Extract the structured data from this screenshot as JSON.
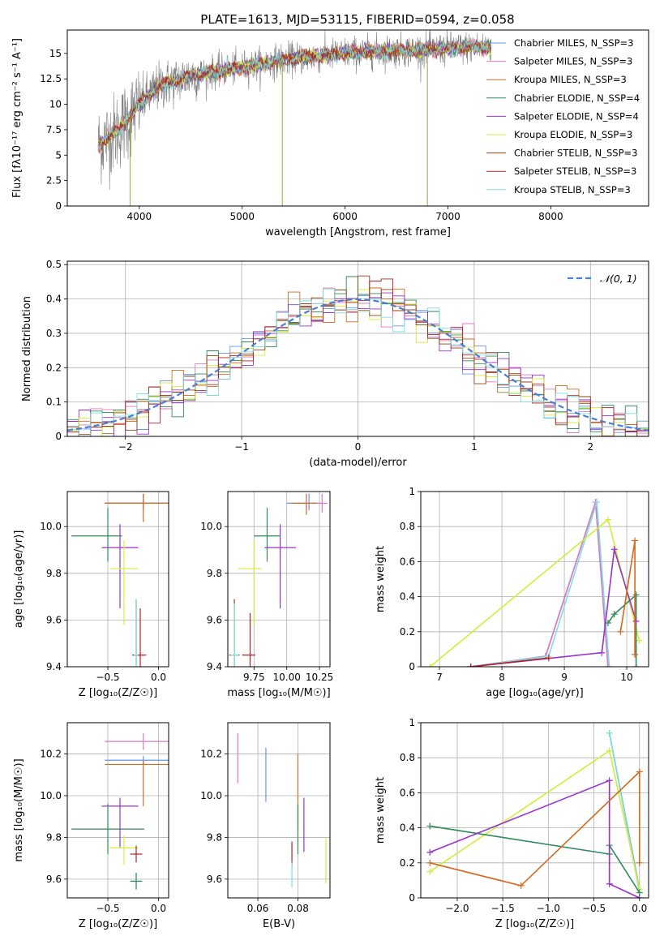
{
  "figure": {
    "title": "PLATE=1613, MJD=53115, FIBERID=0594, z=0.058"
  },
  "chart_data": [
    {
      "id": "spectrum",
      "type": "line",
      "xlabel": "wavelength [Angstrom, rest frame]",
      "ylabel": "Flux [fλ10⁻¹⁷ erg cm⁻² s⁻¹ A⁻¹]",
      "xlim": [
        3300,
        8950
      ],
      "ylim": [
        0,
        17.3
      ],
      "xticks": [
        4000,
        5000,
        6000,
        7000,
        8000
      ],
      "yticks": [
        0.0,
        2.5,
        5.0,
        7.5,
        10.0,
        12.5,
        15.0
      ],
      "grid": false,
      "legend": "upper right",
      "data_color": "#808080",
      "data_range": [
        3600,
        7420
      ],
      "series": [
        {
          "name": "Chabrier MILES, N_SSP=3",
          "color": "#6495ed"
        },
        {
          "name": "Salpeter MILES, N_SSP=3",
          "color": "#e377c2"
        },
        {
          "name": "Kroupa MILES, N_SSP=3",
          "color": "#d2691e"
        },
        {
          "name": "Chabrier ELODIE, N_SSP=4",
          "color": "#2e8b57"
        },
        {
          "name": "Salpeter ELODIE, N_SSP=4",
          "color": "#9932cc"
        },
        {
          "name": "Kroupa ELODIE, N_SSP=3",
          "color": "#d4ec3a"
        },
        {
          "name": "Chabrier STELIB, N_SSP=3",
          "color": "#8b4513"
        },
        {
          "name": "Salpeter STELIB, N_SSP=3",
          "color": "#b22222"
        },
        {
          "name": "Kroupa STELIB, N_SSP=3",
          "color": "#7fdede"
        }
      ],
      "continuum": {
        "x": [
          3600,
          3800,
          4000,
          4200,
          4500,
          4800,
          5100,
          5400,
          5700,
          6000,
          6300,
          6600,
          6900,
          7200,
          7420
        ],
        "y": [
          6.0,
          7.5,
          10.0,
          11.8,
          12.8,
          13.3,
          13.8,
          14.4,
          14.7,
          15.0,
          15.2,
          15.3,
          15.4,
          15.6,
          15.6
        ]
      },
      "spikes": [
        {
          "x": 3910,
          "y": 0
        },
        {
          "x": 5390,
          "y": 0
        },
        {
          "x": 6800,
          "y": 0
        }
      ]
    },
    {
      "id": "residuals",
      "type": "line",
      "xlabel": "(data-model)/error",
      "ylabel": "Normed distribution",
      "xlim": [
        -2.5,
        2.5
      ],
      "ylim": [
        0,
        0.51
      ],
      "xticks": [
        -2,
        -1,
        0,
        1,
        2
      ],
      "yticks": [
        0.0,
        0.1,
        0.2,
        0.3,
        0.4,
        0.5
      ],
      "grid": true,
      "legend": "upper right",
      "reference": {
        "name": "𝒩(0, 1)",
        "color": "#4a7fd4",
        "mu": 0,
        "sigma": 1
      },
      "histogram_bin_width": 0.1,
      "histogram_colors": [
        "#6495ed",
        "#e377c2",
        "#d2691e",
        "#2e8b57",
        "#9932cc",
        "#d4ec3a",
        "#8b4513",
        "#b22222",
        "#7fdede"
      ]
    },
    {
      "id": "z_age",
      "type": "scatter",
      "xlabel": "Z [log₁₀(Z/Z☉)]",
      "ylabel": "age  [log₁₀(age/yr)]",
      "xlim": [
        -0.9,
        0.1
      ],
      "ylim": [
        9.4,
        10.15
      ],
      "xticks": [
        -0.5,
        0.0
      ],
      "xticklabels": [
        "−0.5",
        "0.0"
      ],
      "yticks": [
        9.4,
        9.6,
        9.8,
        10.0
      ],
      "yticklabels": [
        "9.4",
        "9.6",
        "9.8",
        "10.0"
      ],
      "grid": true,
      "points": [
        {
          "x": -0.15,
          "xerr": [
            0.38,
            0.25
          ],
          "y": 10.1,
          "yerr": [
            0.03,
            0.04
          ],
          "color": "#6495ed"
        },
        {
          "x": -0.15,
          "xerr": [
            0.38,
            0.25
          ],
          "y": 10.1,
          "yerr": [
            0.03,
            0.04
          ],
          "color": "#e377c2"
        },
        {
          "x": -0.15,
          "xerr": [
            0.38,
            0.25
          ],
          "y": 10.1,
          "yerr": [
            0.08,
            0.04
          ],
          "color": "#d2691e"
        },
        {
          "x": -0.5,
          "xerr": [
            0.36,
            0.14
          ],
          "y": 9.96,
          "yerr": [
            0.11,
            0.12
          ],
          "color": "#2e8b57"
        },
        {
          "x": -0.38,
          "xerr": [
            0.18,
            0.18
          ],
          "y": 9.91,
          "yerr": [
            0.26,
            0.1
          ],
          "color": "#9932cc"
        },
        {
          "x": -0.34,
          "xerr": [
            0.14,
            0.14
          ],
          "y": 9.82,
          "yerr": [
            0.24,
            0.12
          ],
          "color": "#d4ec3a"
        },
        {
          "x": -0.22,
          "xerr": [
            0.04,
            0.08
          ],
          "y": 9.45,
          "yerr": [
            0.05,
            0.24
          ],
          "color": "#8b4513"
        },
        {
          "x": -0.18,
          "xerr": [
            0.06,
            0.06
          ],
          "y": 9.45,
          "yerr": [
            0.05,
            0.2
          ],
          "color": "#b22222"
        },
        {
          "x": -0.22,
          "xerr": [
            0.02,
            0.02
          ],
          "y": 9.45,
          "yerr": [
            0.05,
            0.24
          ],
          "color": "#7fdede"
        }
      ]
    },
    {
      "id": "mass_age",
      "type": "scatter",
      "xlabel": "mass [log₁₀(M/M☉)]",
      "ylabel": "",
      "xlim": [
        9.55,
        10.33
      ],
      "ylim": [
        9.4,
        10.15
      ],
      "xticks": [
        9.75,
        10.0,
        10.25
      ],
      "xticklabels": [
        "9.75",
        "10.00",
        "10.25"
      ],
      "yticks": [
        9.4,
        9.6,
        9.8,
        10.0
      ],
      "yticklabels": [
        "9.4",
        "9.6",
        "9.8",
        "10.0"
      ],
      "grid": true,
      "points": [
        {
          "x": 10.17,
          "xerr": [
            0.17,
            0.08
          ],
          "y": 10.1,
          "yerr": [
            0.03,
            0.04
          ],
          "color": "#6495ed"
        },
        {
          "x": 10.27,
          "xerr": [
            0.05,
            0.04
          ],
          "y": 10.1,
          "yerr": [
            0.04,
            0.04
          ],
          "color": "#e377c2"
        },
        {
          "x": 10.15,
          "xerr": [
            0.12,
            0.08
          ],
          "y": 10.1,
          "yerr": [
            0.05,
            0.04
          ],
          "color": "#d2691e"
        },
        {
          "x": 9.85,
          "xerr": [
            0.1,
            0.1
          ],
          "y": 9.96,
          "yerr": [
            0.11,
            0.12
          ],
          "color": "#2e8b57"
        },
        {
          "x": 9.95,
          "xerr": [
            0.12,
            0.12
          ],
          "y": 9.91,
          "yerr": [
            0.26,
            0.1
          ],
          "color": "#9932cc"
        },
        {
          "x": 9.75,
          "xerr": [
            0.12,
            0.06
          ],
          "y": 9.82,
          "yerr": [
            0.24,
            0.12
          ],
          "color": "#d4ec3a"
        },
        {
          "x": 9.6,
          "xerr": [
            0.04,
            0.04
          ],
          "y": 9.45,
          "yerr": [
            0.05,
            0.24
          ],
          "color": "#8b4513"
        },
        {
          "x": 9.72,
          "xerr": [
            0.06,
            0.04
          ],
          "y": 9.45,
          "yerr": [
            0.05,
            0.18
          ],
          "color": "#b22222"
        },
        {
          "x": 9.6,
          "xerr": [
            0.03,
            0.03
          ],
          "y": 9.45,
          "yerr": [
            0.05,
            0.22
          ],
          "color": "#7fdede"
        }
      ]
    },
    {
      "id": "age_weight",
      "type": "line",
      "xlabel": "age  [log₁₀(age/yr)]",
      "ylabel": "mass weight",
      "xlim": [
        6.7,
        10.35
      ],
      "ylim": [
        0,
        1.0
      ],
      "xticks": [
        7,
        8,
        9,
        10
      ],
      "yticks": [
        0.0,
        0.2,
        0.4,
        0.6,
        0.8,
        1.0
      ],
      "grid": true,
      "series": [
        {
          "color": "#6495ed",
          "x": [
            7.5,
            8.7,
            9.5,
            9.7
          ],
          "y": [
            0.0,
            0.06,
            0.94,
            0.0
          ]
        },
        {
          "color": "#e377c2",
          "x": [
            7.5,
            8.7,
            9.5,
            9.7
          ],
          "y": [
            0.0,
            0.06,
            0.94,
            0.0
          ]
        },
        {
          "color": "#7fdede",
          "x": [
            7.5,
            8.75,
            9.52,
            9.72
          ],
          "y": [
            0.0,
            0.06,
            0.94,
            0.0
          ]
        },
        {
          "color": "#d4ec3a",
          "x": [
            6.85,
            9.7,
            10.2
          ],
          "y": [
            0.0,
            0.84,
            0.15
          ]
        },
        {
          "color": "#2e8b57",
          "x": [
            9.7,
            9.8,
            10.15,
            10.15
          ],
          "y": [
            0.25,
            0.3,
            0.41,
            0.0
          ]
        },
        {
          "color": "#9932cc",
          "x": [
            7.5,
            9.6,
            9.8,
            10.15
          ],
          "y": [
            0.0,
            0.08,
            0.67,
            0.26
          ]
        },
        {
          "color": "#d2691e",
          "x": [
            9.9,
            10.13,
            10.13
          ],
          "y": [
            0.2,
            0.72,
            0.07
          ]
        },
        {
          "color": "#b22222",
          "x": [
            7.5,
            8.75
          ],
          "y": [
            0.0,
            0.05
          ]
        }
      ]
    },
    {
      "id": "z_mass",
      "type": "scatter",
      "xlabel": "Z [log₁₀(Z/Z☉)]",
      "ylabel": "mass [log₁₀(M/M☉)]",
      "xlim": [
        -0.9,
        0.1
      ],
      "ylim": [
        9.51,
        10.35
      ],
      "xticks": [
        -0.5,
        0.0
      ],
      "xticklabels": [
        "−0.5",
        "0.0"
      ],
      "yticks": [
        9.6,
        9.8,
        10.0,
        10.2
      ],
      "yticklabels": [
        "9.6",
        "9.8",
        "10.0",
        "10.2"
      ],
      "grid": true,
      "points": [
        {
          "x": -0.15,
          "xerr": [
            0.38,
            0.25
          ],
          "y": 10.26,
          "yerr": [
            0.04,
            0.04
          ],
          "color": "#e377c2"
        },
        {
          "x": -0.15,
          "xerr": [
            0.38,
            0.25
          ],
          "y": 10.17,
          "yerr": [
            0.02,
            0.02
          ],
          "color": "#6495ed"
        },
        {
          "x": -0.15,
          "xerr": [
            0.38,
            0.25
          ],
          "y": 10.15,
          "yerr": [
            0.2,
            0.02
          ],
          "color": "#d2691e"
        },
        {
          "x": -0.5,
          "xerr": [
            0.36,
            0.36
          ],
          "y": 9.84,
          "yerr": [
            0.12,
            0.12
          ],
          "color": "#2e8b57"
        },
        {
          "x": -0.38,
          "xerr": [
            0.18,
            0.18
          ],
          "y": 9.95,
          "yerr": [
            0.2,
            0.04
          ],
          "color": "#9932cc"
        },
        {
          "x": -0.34,
          "xerr": [
            0.14,
            0.14
          ],
          "y": 9.75,
          "yerr": [
            0.08,
            0.06
          ],
          "color": "#d4ec3a"
        },
        {
          "x": -0.22,
          "xerr": [
            0.06,
            0.06
          ],
          "y": 9.72,
          "yerr": [
            0.04,
            0.04
          ],
          "color": "#b22222"
        },
        {
          "x": -0.22,
          "xerr": [
            0.06,
            0.06
          ],
          "y": 9.59,
          "yerr": [
            0.04,
            0.04
          ],
          "color": "#7fdede"
        },
        {
          "x": -0.22,
          "xerr": [
            0.06,
            0.06
          ],
          "y": 9.59,
          "yerr": [
            0.04,
            0.04
          ],
          "color": "#2e8b57"
        }
      ]
    },
    {
      "id": "ebv_mass",
      "type": "scatter",
      "xlabel": "E(B-V)",
      "ylabel": "",
      "xlim": [
        0.045,
        0.096
      ],
      "ylim": [
        9.51,
        10.35
      ],
      "xticks": [
        0.06,
        0.08
      ],
      "xticklabels": [
        "0.06",
        "0.08"
      ],
      "yticks": [
        9.6,
        9.8,
        10.0,
        10.2
      ],
      "yticklabels": [
        "9.6",
        "9.8",
        "10.0",
        "10.2"
      ],
      "grid": true,
      "points": [
        {
          "x": 0.05,
          "y": 10.18,
          "yerr": [
            0.12,
            0.12
          ],
          "color": "#e377c2"
        },
        {
          "x": 0.064,
          "y": 10.1,
          "yerr": [
            0.13,
            0.13
          ],
          "color": "#6495ed"
        },
        {
          "x": 0.08,
          "y": 10.02,
          "yerr": [
            0.18,
            0.18
          ],
          "color": "#d2691e"
        },
        {
          "x": 0.08,
          "y": 9.84,
          "yerr": [
            0.12,
            0.12
          ],
          "color": "#2e8b57"
        },
        {
          "x": 0.083,
          "y": 9.86,
          "yerr": [
            0.13,
            0.13
          ],
          "color": "#9932cc"
        },
        {
          "x": 0.094,
          "y": 9.69,
          "yerr": [
            0.11,
            0.11
          ],
          "color": "#d4ec3a"
        },
        {
          "x": 0.077,
          "y": 9.72,
          "yerr": [
            0.06,
            0.06
          ],
          "color": "#b22222"
        },
        {
          "x": 0.077,
          "y": 9.62,
          "yerr": [
            0.06,
            0.06
          ],
          "color": "#7fdede"
        }
      ]
    },
    {
      "id": "z_weight",
      "type": "line",
      "xlabel": "Z [log₁₀(Z/Z☉)]",
      "ylabel": "mass weight",
      "xlim": [
        -2.4,
        0.1
      ],
      "ylim": [
        0,
        1.0
      ],
      "xticks": [
        -2.0,
        -1.5,
        -1.0,
        -0.5,
        0.0
      ],
      "xticklabels": [
        "−2.0",
        "−1.5",
        "−1.0",
        "−0.5",
        "0.0"
      ],
      "yticks": [
        0.0,
        0.2,
        0.4,
        0.6,
        0.8,
        1.0
      ],
      "grid": true,
      "series": [
        {
          "color": "#6495ed",
          "x": [
            -0.33,
            0.0
          ],
          "y": [
            0.94,
            0.05
          ]
        },
        {
          "color": "#7fdede",
          "x": [
            -0.33,
            0.0
          ],
          "y": [
            0.94,
            0.03
          ]
        },
        {
          "color": "#d4ec3a",
          "x": [
            -2.3,
            -0.33,
            0.0
          ],
          "y": [
            0.15,
            0.84,
            0.05
          ]
        },
        {
          "color": "#2e8b57",
          "x": [
            -2.3,
            -0.33,
            -0.33,
            0.0
          ],
          "y": [
            0.41,
            0.25,
            0.3,
            0.03
          ]
        },
        {
          "color": "#9932cc",
          "x": [
            -2.3,
            -0.33,
            -0.33,
            0.0
          ],
          "y": [
            0.26,
            0.67,
            0.08,
            0.0
          ]
        },
        {
          "color": "#d2691e",
          "x": [
            -2.3,
            -1.3,
            0.0,
            0.0
          ],
          "y": [
            0.2,
            0.07,
            0.72,
            0.2
          ]
        }
      ]
    }
  ]
}
